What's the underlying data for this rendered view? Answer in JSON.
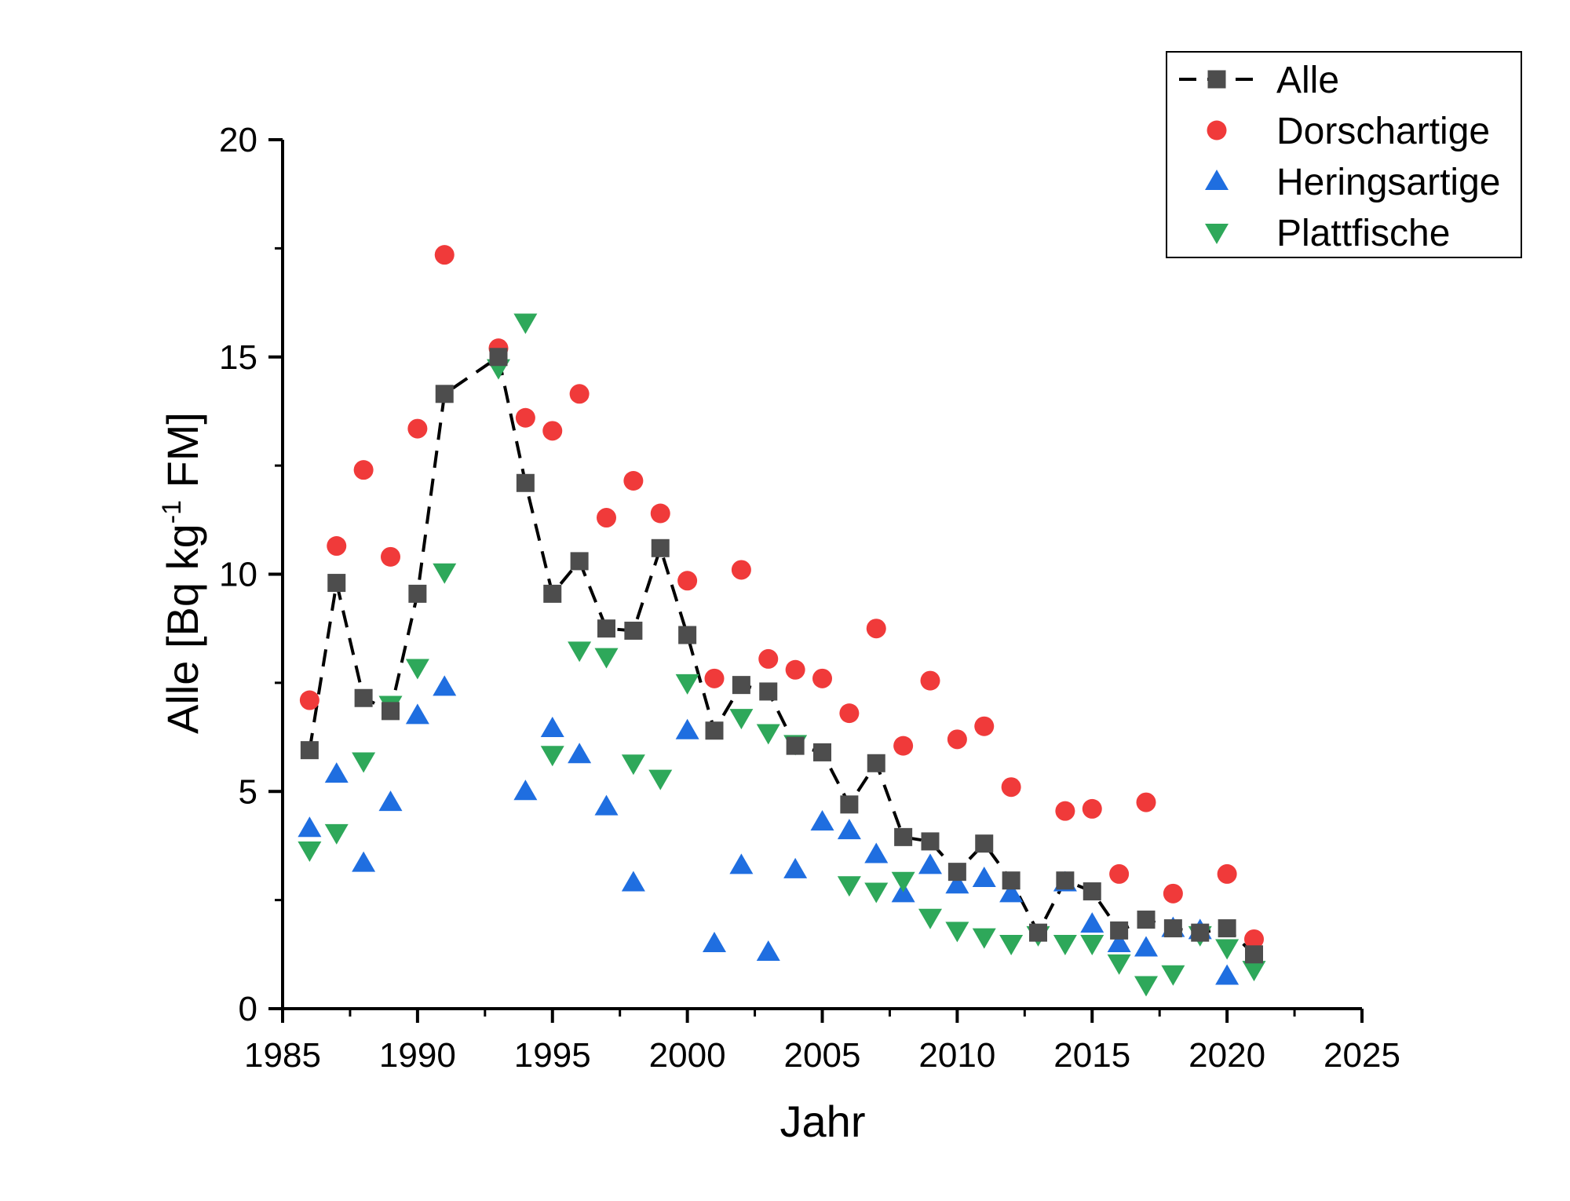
{
  "chart_data": {
    "type": "scatter",
    "title": "",
    "xlabel": "Jahr",
    "ylabel_main": "Alle [Bq kg",
    "ylabel_sup": "-1",
    "ylabel_end": " FM]",
    "xlim": [
      1985,
      2025
    ],
    "ylim": [
      0,
      20
    ],
    "x_ticks": [
      "1985",
      "1990",
      "1995",
      "2000",
      "2005",
      "2010",
      "2015",
      "2020",
      "2025"
    ],
    "y_ticks": [
      "0",
      "5",
      "10",
      "15",
      "20"
    ],
    "legend_position": "top-right",
    "series": [
      {
        "name": "Alle",
        "marker": "square",
        "line": "dashed",
        "color": "#4d4d4d",
        "x": [
          1986,
          1987,
          1988,
          1989,
          1990,
          1991,
          1993,
          1994,
          1995,
          1996,
          1997,
          1998,
          1999,
          2000,
          2001,
          2002,
          2003,
          2004,
          2005,
          2006,
          2007,
          2008,
          2009,
          2010,
          2011,
          2012,
          2013,
          2014,
          2015,
          2016,
          2017,
          2018,
          2019,
          2020,
          2021
        ],
        "y": [
          5.95,
          9.8,
          7.15,
          6.85,
          9.55,
          14.15,
          15.0,
          12.1,
          9.55,
          10.3,
          8.75,
          8.7,
          10.6,
          8.6,
          6.4,
          7.45,
          7.3,
          6.05,
          5.9,
          4.7,
          5.65,
          3.95,
          3.85,
          3.15,
          3.8,
          2.95,
          1.75,
          2.95,
          2.7,
          1.8,
          2.05,
          1.85,
          1.75,
          1.85,
          1.25
        ]
      },
      {
        "name": "Dorschartige",
        "marker": "circle",
        "line": "none",
        "color": "#f03a3a",
        "x": [
          1986,
          1987,
          1988,
          1989,
          1990,
          1991,
          1993,
          1994,
          1995,
          1996,
          1997,
          1998,
          1999,
          2000,
          2001,
          2002,
          2003,
          2004,
          2005,
          2006,
          2007,
          2008,
          2009,
          2010,
          2011,
          2012,
          2014,
          2015,
          2016,
          2017,
          2018,
          2020,
          2021
        ],
        "y": [
          7.1,
          10.65,
          12.4,
          10.4,
          13.35,
          17.35,
          15.2,
          13.6,
          13.3,
          14.15,
          11.3,
          12.15,
          11.4,
          9.85,
          7.6,
          10.1,
          8.05,
          7.8,
          7.6,
          6.8,
          8.75,
          6.05,
          7.55,
          6.2,
          6.5,
          5.1,
          4.55,
          4.6,
          3.1,
          4.75,
          2.65,
          3.1,
          1.6
        ]
      },
      {
        "name": "Heringsartige",
        "marker": "triangle-up",
        "line": "none",
        "color": "#1f6ee0",
        "x": [
          1986,
          1987,
          1988,
          1989,
          1990,
          1991,
          1994,
          1995,
          1996,
          1997,
          1998,
          2000,
          2001,
          2002,
          2003,
          2004,
          2005,
          2006,
          2007,
          2008,
          2009,
          2010,
          2011,
          2012,
          2014,
          2015,
          2016,
          2017,
          2018,
          2019,
          2020
        ],
        "y": [
          4.15,
          5.4,
          3.35,
          4.75,
          6.75,
          7.4,
          5.0,
          6.45,
          5.85,
          4.65,
          2.9,
          6.4,
          1.5,
          3.3,
          1.3,
          3.2,
          4.3,
          4.1,
          3.55,
          2.65,
          3.3,
          2.85,
          3.0,
          2.65,
          2.9,
          1.95,
          1.5,
          1.4,
          1.85,
          1.8,
          0.75
        ]
      },
      {
        "name": "Plattfische",
        "marker": "triangle-down",
        "line": "none",
        "color": "#2ea85a",
        "x": [
          1986,
          1987,
          1988,
          1989,
          1990,
          1991,
          1993,
          1994,
          1995,
          1996,
          1997,
          1998,
          1999,
          2000,
          2002,
          2003,
          2004,
          2006,
          2007,
          2008,
          2009,
          2010,
          2011,
          2012,
          2013,
          2014,
          2015,
          2016,
          2017,
          2018,
          2019,
          2020,
          2021
        ],
        "y": [
          3.65,
          4.05,
          5.7,
          7.0,
          7.85,
          10.05,
          14.75,
          15.8,
          5.85,
          8.25,
          8.1,
          5.65,
          5.3,
          7.5,
          6.7,
          6.35,
          6.1,
          2.85,
          2.7,
          2.95,
          2.1,
          1.8,
          1.65,
          1.5,
          1.7,
          1.5,
          1.5,
          1.05,
          0.55,
          0.8,
          1.7,
          1.4,
          0.9
        ]
      }
    ]
  }
}
